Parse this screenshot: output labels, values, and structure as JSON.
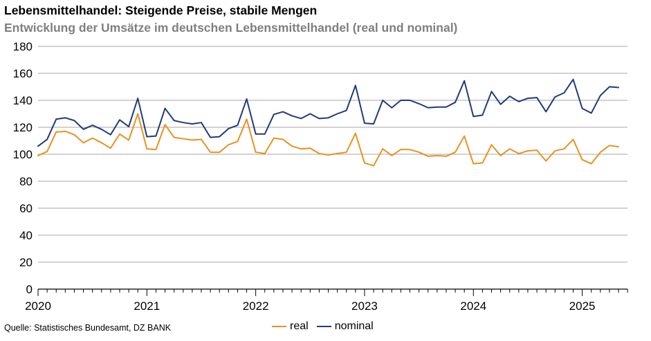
{
  "header": {
    "title": "Lebensmittelhandel: Steigende Preise, stabile Mengen",
    "subtitle": "Entwicklung der Umsätze im deutschen Lebensmittelhandel (real und nominal)"
  },
  "footer": {
    "source": "Quelle: Statistisches Bundesamt, DZ BANK"
  },
  "colors": {
    "real": "#E8921E",
    "nominal": "#1F3A7A",
    "grid": "#a6a6a6",
    "axis": "#000000"
  },
  "chart_data": {
    "type": "line",
    "title": "Lebensmittelhandel: Steigende Preise, stabile Mengen",
    "subtitle": "Entwicklung der Umsätze im deutschen Lebensmittelhandel (real und nominal)",
    "xlabel": "",
    "ylabel": "",
    "ylim": [
      0,
      180
    ],
    "yticks": [
      "0",
      "20",
      "40",
      "60",
      "80",
      "100",
      "120",
      "140",
      "160",
      "180"
    ],
    "xticks": [
      "2020",
      "2021",
      "2022",
      "2023",
      "2024",
      "2025"
    ],
    "x_start": "2020-01",
    "x_frequency": "monthly",
    "x_count": 65,
    "grid": true,
    "legend_position": "bottom-center",
    "series": [
      {
        "name": "real",
        "color": "#E8921E",
        "values": [
          99,
          102,
          116.5,
          117,
          114.5,
          108.5,
          112,
          108.5,
          104.5,
          115,
          110.5,
          130,
          104,
          103.5,
          122,
          112.5,
          111.5,
          110.5,
          111,
          101.5,
          101.5,
          107,
          109.5,
          126,
          101.5,
          100.5,
          112,
          111,
          106,
          104,
          104.5,
          100.5,
          99.5,
          100.5,
          101.5,
          115.5,
          93.5,
          91.5,
          104,
          99,
          103.5,
          103.5,
          101.5,
          98.5,
          99,
          98.5,
          101.5,
          113.5,
          93,
          93.5,
          107,
          99,
          104,
          100.5,
          102.5,
          103,
          95,
          102.5,
          104,
          111,
          96,
          93,
          101.5,
          106.5,
          105.5
        ]
      },
      {
        "name": "nominal",
        "color": "#1F3A7A",
        "values": [
          106,
          111,
          126,
          127,
          125,
          118.5,
          121.5,
          118.5,
          114.5,
          125.5,
          120.5,
          141.5,
          113,
          113.5,
          134,
          125,
          123.5,
          122.5,
          123.5,
          112.5,
          113,
          119,
          121.5,
          141,
          115,
          115,
          129.5,
          131.5,
          128.5,
          126.5,
          130,
          126.5,
          127,
          130,
          132.5,
          151,
          123,
          122.5,
          140,
          134.5,
          140,
          140,
          137.5,
          134.5,
          135,
          135,
          138.5,
          154.5,
          128,
          129,
          146.5,
          137,
          143,
          139,
          141.5,
          142,
          131.5,
          142.5,
          145.5,
          155.5,
          134,
          130.5,
          143.5,
          150,
          149.5
        ]
      }
    ]
  }
}
